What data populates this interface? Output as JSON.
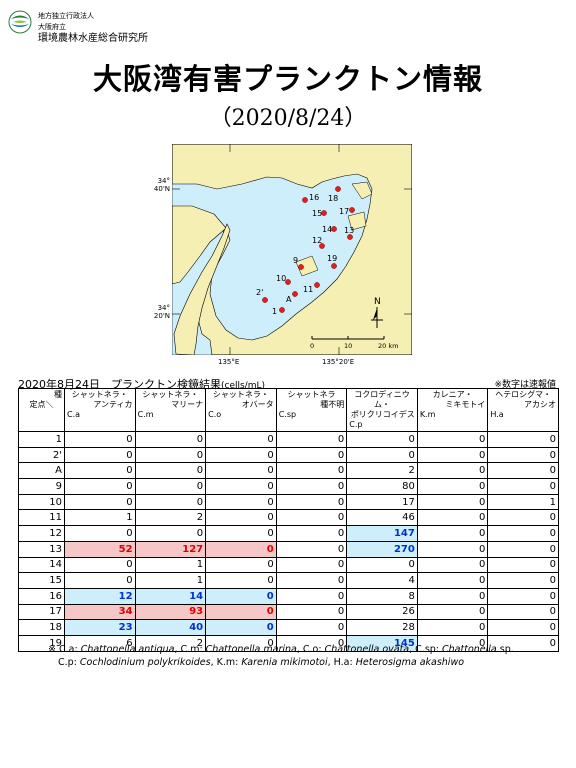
{
  "header": {
    "org_line1": "地方独立行政法人",
    "org_line2": "大阪府立",
    "org_line3": "環境農林水産総合研究所"
  },
  "title": "大阪湾有害プランクトン情報",
  "date": "（2020/8/24）",
  "map": {
    "lat_top": "34°\n40'N",
    "lat_bottom": "34°\n20'N",
    "lon_left": "135°E",
    "lon_right": "135°20'E",
    "north": "N",
    "scale": [
      "0",
      "10",
      "20 km"
    ],
    "stations": [
      "16",
      "18",
      "15",
      "17",
      "14",
      "13",
      "12",
      "9",
      "19",
      "10",
      "2'",
      "11",
      "A",
      "1"
    ]
  },
  "results": {
    "label": "2020年8月24日　プランクトン検鏡結果",
    "unit": "(cells/mL)",
    "note_right": "※数字は速報値",
    "corner_top": "種",
    "corner_bottom": "定点＼",
    "columns": [
      {
        "line1": "シャットネラ・",
        "line2": "アンティカ",
        "abbr": "C.a"
      },
      {
        "line1": "シャットネラ・",
        "line2": "マリーナ",
        "abbr": "C.m"
      },
      {
        "line1": "シャットネラ・",
        "line2": "オバータ",
        "abbr": "C.o"
      },
      {
        "line1": "シャットネラ",
        "line2": "種不明",
        "abbr": "C.sp"
      },
      {
        "line1": "コクロディニウム・",
        "line2": "ポリクリコイデス",
        "abbr": "C.p"
      },
      {
        "line1": "カレニア・",
        "line2": "ミキモトイ",
        "abbr": "K.m"
      },
      {
        "line1": "ヘテロシグマ・",
        "line2": "アカシオ",
        "abbr": "H.a"
      }
    ],
    "rows": [
      {
        "station": "1",
        "values": [
          "0",
          "0",
          "0",
          "0",
          "0",
          "0",
          "0"
        ]
      },
      {
        "station": "2'",
        "values": [
          "0",
          "0",
          "0",
          "0",
          "0",
          "0",
          "0"
        ]
      },
      {
        "station": "A",
        "values": [
          "0",
          "0",
          "0",
          "0",
          "2",
          "0",
          "0"
        ]
      },
      {
        "station": "9",
        "values": [
          "0",
          "0",
          "0",
          "0",
          "80",
          "0",
          "0"
        ]
      },
      {
        "station": "10",
        "values": [
          "0",
          "0",
          "0",
          "0",
          "17",
          "0",
          "1"
        ]
      },
      {
        "station": "11",
        "values": [
          "1",
          "2",
          "0",
          "0",
          "46",
          "0",
          "0"
        ]
      },
      {
        "station": "12",
        "values": [
          "0",
          "0",
          "0",
          "0",
          "147",
          "0",
          "0"
        ]
      },
      {
        "station": "13",
        "values": [
          "52",
          "127",
          "0",
          "0",
          "270",
          "0",
          "0"
        ]
      },
      {
        "station": "14",
        "values": [
          "0",
          "1",
          "0",
          "0",
          "0",
          "0",
          "0"
        ]
      },
      {
        "station": "15",
        "values": [
          "0",
          "1",
          "0",
          "0",
          "4",
          "0",
          "0"
        ]
      },
      {
        "station": "16",
        "values": [
          "12",
          "14",
          "0",
          "0",
          "8",
          "0",
          "0"
        ]
      },
      {
        "station": "17",
        "values": [
          "34",
          "93",
          "0",
          "0",
          "26",
          "0",
          "0"
        ]
      },
      {
        "station": "18",
        "values": [
          "23",
          "40",
          "0",
          "0",
          "28",
          "0",
          "0"
        ]
      },
      {
        "station": "19",
        "values": [
          "6",
          "2",
          "0",
          "0",
          "145",
          "0",
          "0"
        ]
      }
    ],
    "highlights": {
      "7": {
        "0": "red",
        "1": "red",
        "2": "red",
        "4": "blue"
      },
      "6": {
        "4": "blue"
      },
      "10": {
        "0": "blue",
        "1": "blue",
        "2": "blue"
      },
      "11": {
        "0": "red",
        "1": "red",
        "2": "red"
      },
      "12": {
        "0": "blue",
        "1": "blue",
        "2": "blue"
      },
      "13": {
        "4": "blue"
      }
    }
  },
  "footnote": {
    "line1": [
      {
        "t": "※ C.a: ",
        "i": false
      },
      {
        "t": "Chattonella antiqua",
        "i": true
      },
      {
        "t": ", C.m: ",
        "i": false
      },
      {
        "t": "Chattonella marina",
        "i": true
      },
      {
        "t": ", C.o: ",
        "i": false
      },
      {
        "t": "Chattonella ovata",
        "i": true
      },
      {
        "t": ", C.sp: ",
        "i": false
      },
      {
        "t": "Chattonella",
        "i": true
      },
      {
        "t": " sp.",
        "i": false
      }
    ],
    "line2": [
      {
        "t": "C.p: ",
        "i": false
      },
      {
        "t": "Cochlodinium polykrikoides",
        "i": true
      },
      {
        "t": ",  K.m: ",
        "i": false
      },
      {
        "t": "Karenia mikimotoi",
        "i": true
      },
      {
        "t": ",  H.a: ",
        "i": false
      },
      {
        "t": "Heterosigma akashiwo",
        "i": true
      }
    ]
  }
}
